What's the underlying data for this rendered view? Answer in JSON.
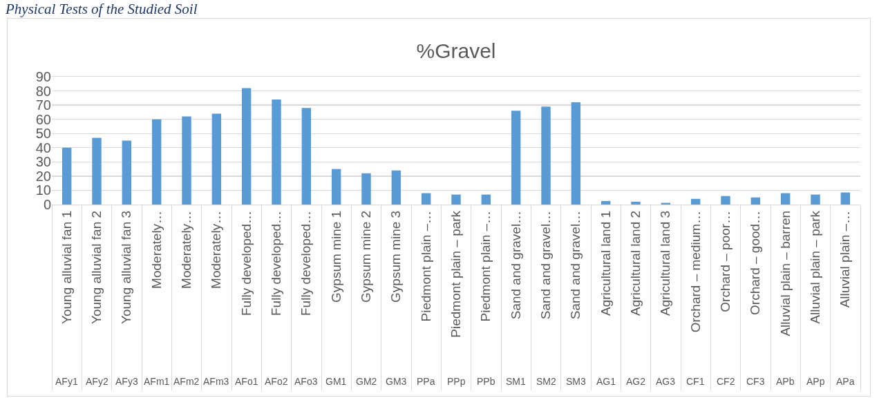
{
  "chart_data": {
    "type": "bar",
    "title": "%Gravel",
    "categories": [
      "Young alluvial fan 1",
      "Young alluvial fan 2",
      "Young alluvial fan 3",
      "Moderately…",
      "Moderately…",
      "Moderately…",
      "Fully developed…",
      "Fully developed…",
      "Fully developed…",
      "Gypsum mine 1",
      "Gypsum mine 2",
      "Gypsum mine 3",
      "Piedmont plain –…",
      "Piedmont plain – park",
      "Piedmont plain –…",
      "Sand and gravel…",
      "Sand and gravel…",
      "Sand and gravel…",
      "Agricultural land 1",
      "Agricultural land 2",
      "Agricultural land 3",
      "Orchard – medium…",
      "Orchard – poor…",
      "Orchard – good…",
      "Alluvial plain – barren",
      "Alluvial plain – park",
      "Alluvial plain –…"
    ],
    "values": [
      40,
      47,
      45,
      60,
      62,
      64,
      82,
      74,
      68,
      25,
      22,
      24,
      8,
      7,
      7,
      66,
      69,
      72,
      2.5,
      2,
      1.2,
      4,
      6,
      5,
      8,
      7,
      8.5
    ],
    "color": "#5b9bd5",
    "ylim": [
      0,
      90
    ],
    "yticks": [
      0,
      10,
      20,
      30,
      40,
      50,
      60,
      70,
      80,
      90
    ],
    "grid": "y",
    "annotations": [
      "Physical Tests of the Studied Soil",
      "AFy1",
      "AFy2",
      "AFy3",
      "AFm1",
      "AFm2",
      "AFm3",
      "AFo1",
      "AFo2",
      "AFo3",
      "GM1",
      "GM2",
      "GM3",
      "PPa",
      "PPp",
      "PPb",
      "SM1",
      "SM2",
      "SM3",
      "AG1",
      "AG2",
      "AG3",
      "CF1",
      "CF2",
      "CF3",
      "APb",
      "APp",
      "APa"
    ]
  }
}
